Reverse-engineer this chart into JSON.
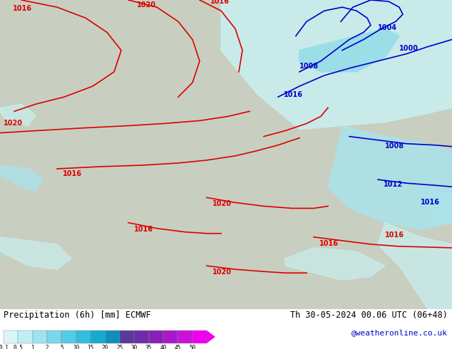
{
  "title_left": "Precipitation (6h) [mm] ECMWF",
  "title_right": "Th 30-05-2024 00.06 UTC (06+48)",
  "credit": "@weatheronline.co.uk",
  "colorbar_tick_labels": [
    "0.1",
    "0.5",
    "1",
    "2",
    "5",
    "10",
    "15",
    "20",
    "25",
    "30",
    "35",
    "40",
    "45",
    "50"
  ],
  "colorbar_colors": [
    "#daf5f8",
    "#c0eef5",
    "#9de4f0",
    "#7ad8eb",
    "#55cce5",
    "#30bfde",
    "#18aace",
    "#0e8fb8",
    "#5a3a9a",
    "#6e2da8",
    "#8820b8",
    "#aa18cc",
    "#cc10dc",
    "#ee00ee"
  ],
  "map_land_color": "#c8cfc0",
  "map_sea_color": "#b8b8b8",
  "map_bg": "#c0c8b8",
  "precip_light": "#c8f0f0",
  "precip_mid": "#a8e4ec",
  "precip_strong": "#88d4e8",
  "bottom_bg": "#ffffff",
  "red_isobar_color": "#dd0000",
  "blue_isobar_color": "#0000cc",
  "isobar_fontsize": 7,
  "label_fontsize": 8.5,
  "credit_color": "#0000cc"
}
